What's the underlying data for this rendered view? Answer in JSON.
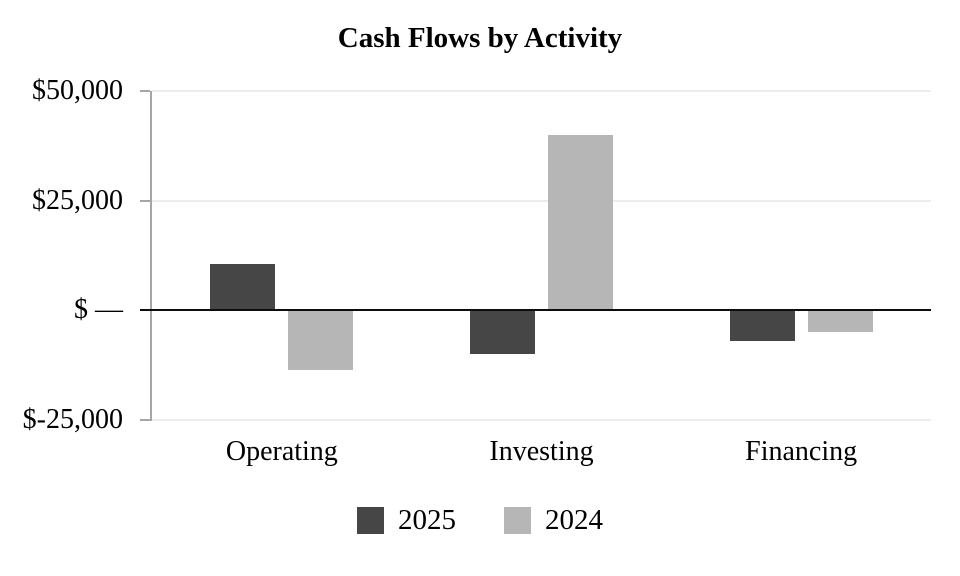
{
  "title": "Cash Flows by Activity",
  "colors": {
    "series_2025": "#464646",
    "series_2024": "#b6b6b6",
    "gridline": "#ececec",
    "axis_line": "#a6a6a6",
    "zero_line": "#0d0d0d",
    "text": "#000000",
    "background": "#ffffff"
  },
  "chart_data": {
    "type": "bar",
    "title": "Cash Flows by Activity",
    "categories": [
      "Operating",
      "Investing",
      "Financing"
    ],
    "series": [
      {
        "name": "2025",
        "color": "#464646",
        "values": [
          10500,
          -10000,
          -7000
        ]
      },
      {
        "name": "2024",
        "color": "#b6b6b6",
        "values": [
          -13500,
          40000,
          -5000
        ]
      }
    ],
    "xlabel": "",
    "ylabel": "",
    "ylim": [
      -25000,
      50000
    ],
    "y_ticks": [
      {
        "value": 50000,
        "label": "$50,000"
      },
      {
        "value": 25000,
        "label": "$25,000"
      },
      {
        "value": 0,
        "label": "$ —"
      },
      {
        "value": -25000,
        "label": "$-25,000"
      }
    ],
    "grid": true,
    "legend": [
      "2025",
      "2024"
    ],
    "legend_position": "bottom"
  }
}
